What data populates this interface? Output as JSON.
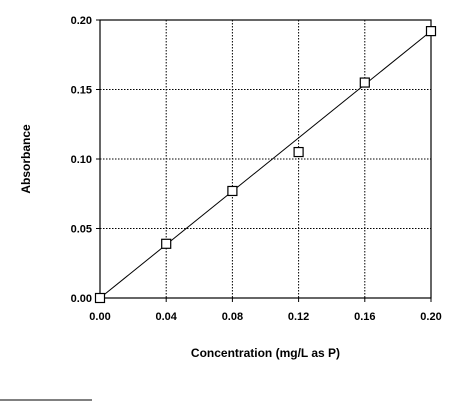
{
  "chart_data": {
    "type": "scatter",
    "title": "",
    "xlabel": "Concentration (mg/L as P)",
    "ylabel": "Absorbance",
    "xlim": [
      0.0,
      0.2
    ],
    "ylim": [
      0.0,
      0.2
    ],
    "x_ticks": [
      "0.00",
      "0.04",
      "0.08",
      "0.12",
      "0.16",
      "0.20"
    ],
    "y_ticks": [
      "0.00",
      "0.05",
      "0.10",
      "0.15",
      "0.20"
    ],
    "grid": true,
    "marker": "open-square",
    "series": [
      {
        "points": [
          {
            "x": 0.0,
            "y": 0.0
          },
          {
            "x": 0.04,
            "y": 0.039
          },
          {
            "x": 0.08,
            "y": 0.077
          },
          {
            "x": 0.12,
            "y": 0.105
          },
          {
            "x": 0.16,
            "y": 0.155
          },
          {
            "x": 0.2,
            "y": 0.192
          }
        ],
        "fit_line": {
          "from": {
            "x": 0.0,
            "y": 0.0
          },
          "to": {
            "x": 0.2,
            "y": 0.192
          }
        }
      }
    ]
  }
}
